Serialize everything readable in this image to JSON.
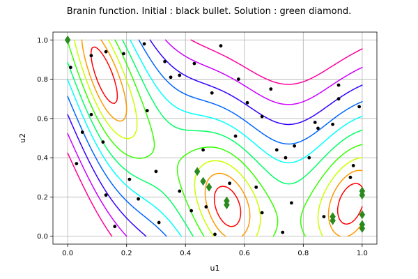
{
  "chart_data": {
    "type": "scatter",
    "title": "Branin function. Initial : black bullet. Solution : green diamond.",
    "xlabel": "u1",
    "ylabel": "u2",
    "xlim": [
      -0.05,
      1.05
    ],
    "ylim": [
      -0.04,
      1.04
    ],
    "xticks": [
      "0.0",
      "0.2",
      "0.4",
      "0.6",
      "0.8",
      "1.0"
    ],
    "xtick_values": [
      0.0,
      0.2,
      0.4,
      0.6,
      0.8,
      1.0
    ],
    "yticks": [
      "0.0",
      "0.2",
      "0.4",
      "0.6",
      "0.8",
      "1.0"
    ],
    "ytick_values": [
      0.0,
      0.2,
      0.4,
      0.6,
      0.8,
      1.0
    ],
    "grid": true,
    "background": "contour plot of the Branin function",
    "contour_colors": [
      "#ff0000",
      "#ff9900",
      "#ccff00",
      "#33ff00",
      "#00ff66",
      "#00ffff",
      "#0066ff",
      "#3300ff",
      "#cc00ff",
      "#ff0099"
    ],
    "series": [
      {
        "marker": "circle",
        "color": "#000000",
        "points": [
          [
            0.01,
            0.86
          ],
          [
            0.08,
            0.92
          ],
          [
            0.13,
            0.94
          ],
          [
            0.19,
            0.93
          ],
          [
            0.26,
            0.98
          ],
          [
            0.33,
            0.89
          ],
          [
            0.35,
            0.81
          ],
          [
            0.38,
            0.82
          ],
          [
            0.43,
            0.88
          ],
          [
            0.52,
            0.97
          ],
          [
            0.49,
            0.73
          ],
          [
            0.58,
            0.8
          ],
          [
            0.61,
            0.68
          ],
          [
            0.69,
            0.75
          ],
          [
            0.66,
            0.61
          ],
          [
            0.57,
            0.51
          ],
          [
            0.92,
            0.77
          ],
          [
            0.92,
            0.7
          ],
          [
            0.99,
            0.66
          ],
          [
            0.84,
            0.58
          ],
          [
            0.85,
            0.55
          ],
          [
            0.9,
            0.57
          ],
          [
            0.77,
            0.46
          ],
          [
            0.71,
            0.44
          ],
          [
            0.74,
            0.4
          ],
          [
            0.82,
            0.4
          ],
          [
            0.97,
            0.36
          ],
          [
            0.96,
            0.3
          ],
          [
            0.08,
            0.62
          ],
          [
            0.05,
            0.53
          ],
          [
            0.12,
            0.48
          ],
          [
            0.27,
            0.64
          ],
          [
            0.03,
            0.37
          ],
          [
            0.46,
            0.44
          ],
          [
            0.3,
            0.33
          ],
          [
            0.21,
            0.29
          ],
          [
            0.13,
            0.21
          ],
          [
            0.24,
            0.19
          ],
          [
            0.38,
            0.23
          ],
          [
            0.42,
            0.13
          ],
          [
            0.47,
            0.15
          ],
          [
            0.55,
            0.27
          ],
          [
            0.64,
            0.25
          ],
          [
            0.66,
            0.12
          ],
          [
            0.16,
            0.05
          ],
          [
            0.31,
            0.07
          ],
          [
            0.5,
            0.01
          ],
          [
            0.76,
            0.17
          ],
          [
            0.73,
            0.02
          ],
          [
            0.87,
            0.1
          ]
        ]
      },
      {
        "marker": "diamond",
        "color": "#2a8a1e",
        "points": [
          [
            0.0,
            1.0
          ],
          [
            0.44,
            0.33
          ],
          [
            0.46,
            0.28
          ],
          [
            0.48,
            0.25
          ],
          [
            0.54,
            0.18
          ],
          [
            0.54,
            0.16
          ],
          [
            0.9,
            0.1
          ],
          [
            0.9,
            0.08
          ],
          [
            1.0,
            0.23
          ],
          [
            1.0,
            0.21
          ],
          [
            1.0,
            0.11
          ],
          [
            1.0,
            0.06
          ],
          [
            1.0,
            0.04
          ]
        ]
      }
    ]
  }
}
